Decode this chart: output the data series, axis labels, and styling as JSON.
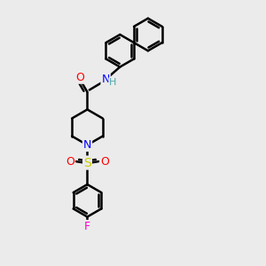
{
  "bg_color": "#ebebeb",
  "bond_color": "#000000",
  "bond_width": 1.8,
  "atom_colors": {
    "N": "#0000ff",
    "O": "#ff0000",
    "S": "#cccc00",
    "F": "#ff00cc",
    "H_label": "#4da6a6",
    "C": "#000000"
  },
  "figsize": [
    3.0,
    3.0
  ],
  "dpi": 100,
  "xlim": [
    0,
    10
  ],
  "ylim": [
    0,
    10
  ]
}
